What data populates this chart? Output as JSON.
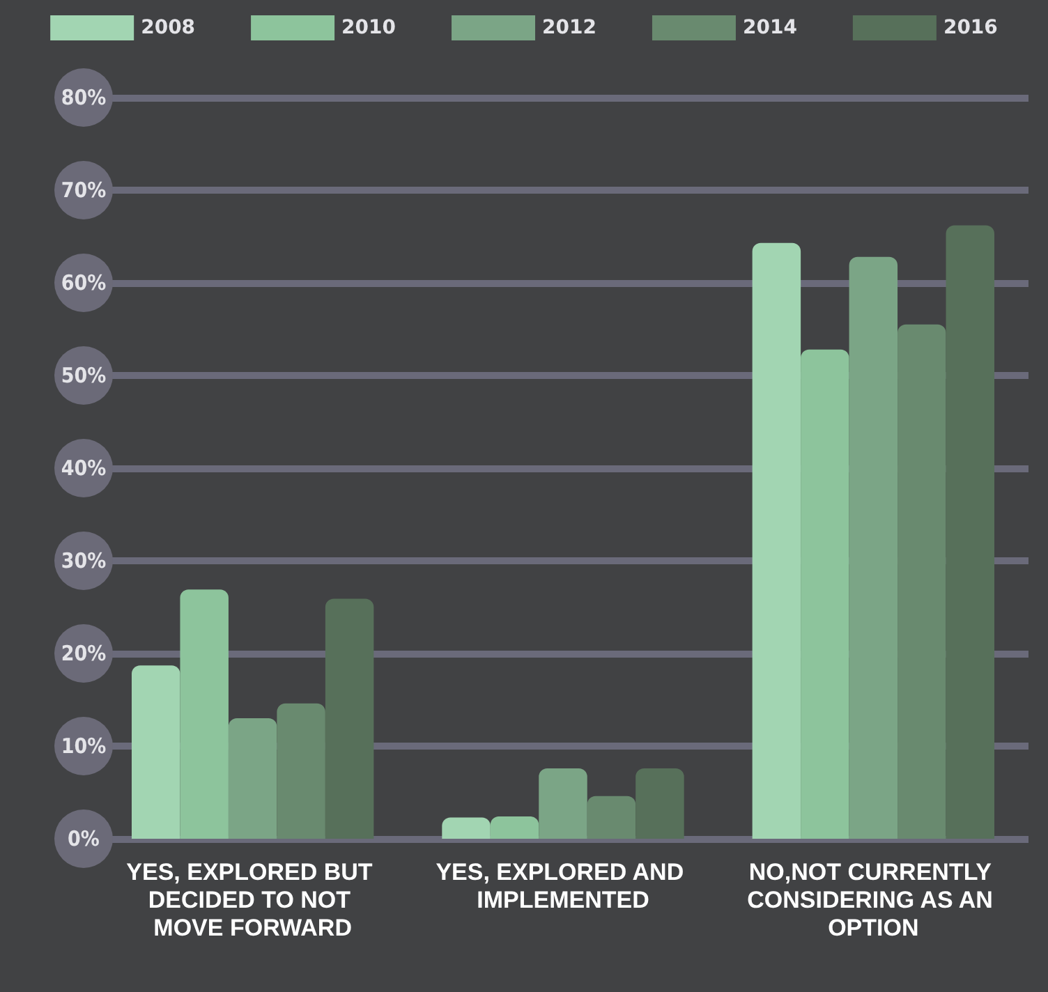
{
  "chart_data": {
    "type": "bar",
    "categories": [
      "YES, EXPLORED BUT DECIDED TO NOT MOVE FORWARD",
      "YES, EXPLORED AND IMPLEMENTED",
      "NO,NOT CURRENTLY CONSIDERING AS AN OPTION"
    ],
    "series": [
      {
        "name": "2008",
        "color": "#a2d5b2",
        "values": [
          18.7,
          2.3,
          64.3
        ]
      },
      {
        "name": "2010",
        "color": "#8dc49c",
        "values": [
          26.9,
          2.4,
          52.8
        ]
      },
      {
        "name": "2012",
        "color": "#7ba586",
        "values": [
          13.0,
          7.6,
          62.8
        ]
      },
      {
        "name": "2014",
        "color": "#698a6f",
        "values": [
          14.6,
          4.6,
          55.5
        ]
      },
      {
        "name": "2016",
        "color": "#57705a",
        "values": [
          25.9,
          7.6,
          66.2
        ]
      }
    ],
    "ylim": [
      0,
      80
    ],
    "yticks": [
      {
        "value": 0,
        "label": "0%"
      },
      {
        "value": 10,
        "label": "10%"
      },
      {
        "value": 20,
        "label": "20%"
      },
      {
        "value": 30,
        "label": "30%"
      },
      {
        "value": 40,
        "label": "40%"
      },
      {
        "value": 50,
        "label": "50%"
      },
      {
        "value": 60,
        "label": "60%"
      },
      {
        "value": 70,
        "label": "70%"
      },
      {
        "value": 80,
        "label": "80%"
      }
    ],
    "grid": true,
    "legend": "top"
  }
}
